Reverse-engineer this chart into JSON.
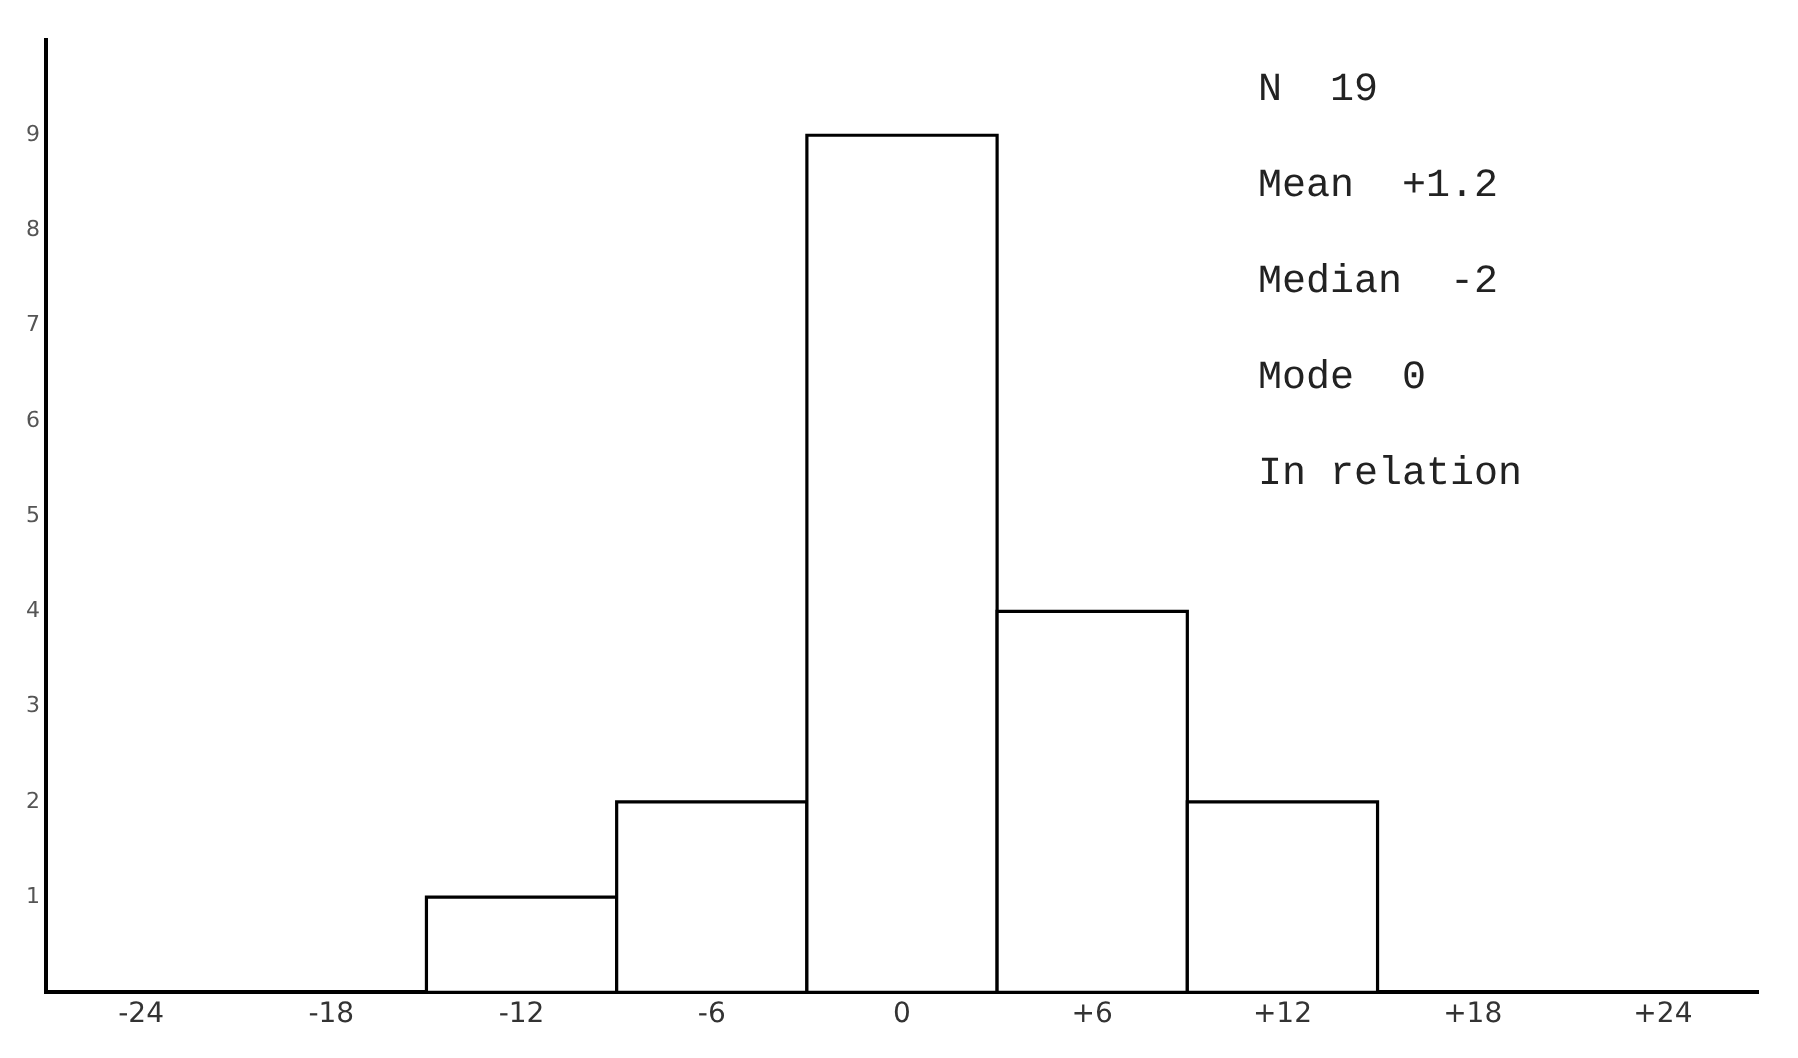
{
  "chart_data": {
    "type": "histogram",
    "bins": [
      -15,
      -9,
      -3,
      3,
      9,
      15
    ],
    "values": [
      1,
      2,
      9,
      4,
      2
    ],
    "color": "#000000",
    "xlim": [
      -27,
      27
    ],
    "xticks": [
      -24,
      -18,
      -12,
      -6,
      0,
      {
        "value": 6,
        "label": "+6"
      },
      {
        "value": 12,
        "label": "+12"
      },
      {
        "value": 18,
        "label": "+18"
      },
      {
        "value": 24,
        "label": "+24"
      }
    ],
    "ylim": [
      0,
      10
    ],
    "yticks": [
      1,
      2,
      3,
      4,
      5,
      6,
      7,
      8,
      9
    ],
    "grid": false,
    "annotations": [
      "N  19",
      "Mean  +1.2",
      "Median  -2",
      "Mode  0",
      "In relation"
    ]
  }
}
